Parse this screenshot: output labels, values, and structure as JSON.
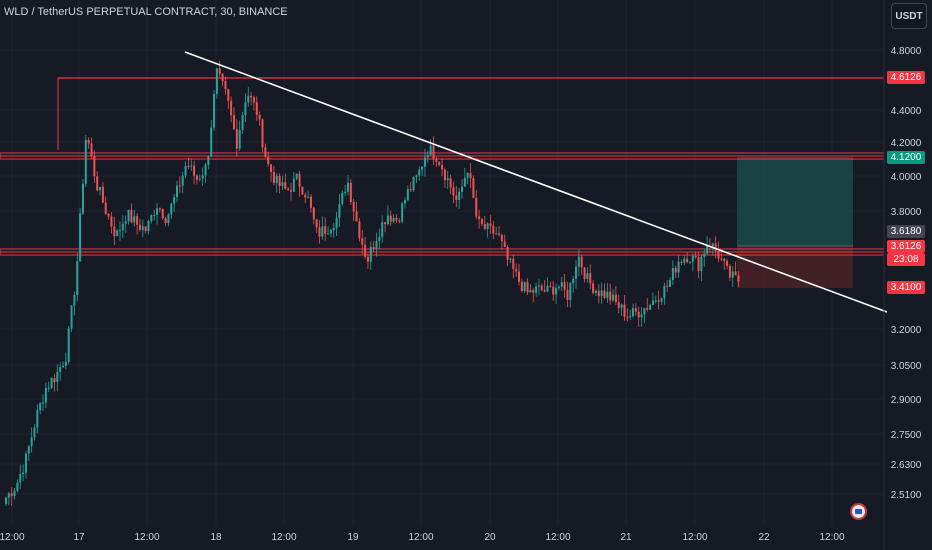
{
  "header": {
    "symbol_title": "WLD / TetherUS PERPETUAL CONTRACT, 30, BINANCE",
    "currency_button": "USDT"
  },
  "colors": {
    "background": "#161a25",
    "grid": "#1f2330",
    "candle_up": "#26a69a",
    "candle_down": "#ef5350",
    "level_line": "#f23645",
    "trendline": "#ffffff",
    "target_zone": "#1a4a4a",
    "stop_zone": "#4a2327",
    "tag_red": "#f23645",
    "tag_teal": "#089981",
    "tag_gray": "#434651"
  },
  "price_axis": {
    "labels": [
      "4.8000",
      "4.4000",
      "4.2000",
      "4.0000",
      "3.8000",
      "3.2000",
      "3.0500",
      "2.9000",
      "2.7500",
      "2.6300",
      "2.5100"
    ],
    "tags": {
      "resistance_top": "4.6126",
      "target": "4.1200",
      "current": "3.6180",
      "support": "3.6126",
      "countdown": "23:08",
      "stop": "3.4100"
    }
  },
  "time_axis": {
    "labels": [
      "12:00",
      "17",
      "12:00",
      "18",
      "12:00",
      "19",
      "12:00",
      "20",
      "12:00",
      "21",
      "12:00",
      "22",
      "12:00"
    ]
  },
  "chart_data": {
    "type": "candlestick",
    "symbol": "WLD/USDT",
    "interval": "30",
    "exchange": "BINANCE",
    "y_range": [
      2.45,
      4.85
    ],
    "x_start": "16 12:00",
    "x_end": "22 12:00",
    "horizontal_levels": [
      4.6126,
      4.12,
      3.6126
    ],
    "trendline": {
      "from": [
        "17 12:00 (approx.)",
        4.78
      ],
      "to": [
        "22 12:00+ (approx.)",
        3.3
      ]
    },
    "position": {
      "entry": 3.618,
      "target": 4.12,
      "stop": 3.41
    },
    "last_price": 3.618,
    "close_path_approx": [
      2.56,
      2.62,
      2.75,
      2.95,
      3.1,
      3.16,
      3.26,
      3.65,
      4.35,
      4.1,
      3.96,
      3.84,
      3.95,
      3.9,
      3.87,
      4.0,
      3.93,
      4.05,
      4.2,
      4.12,
      4.18,
      4.64,
      4.52,
      4.3,
      4.55,
      4.45,
      4.2,
      4.1,
      4.06,
      4.12,
      4.04,
      3.85,
      3.88,
      3.93,
      4.12,
      3.9,
      3.72,
      3.85,
      3.95,
      3.92,
      4.05,
      4.13,
      4.27,
      4.23,
      4.12,
      4.0,
      4.18,
      3.9,
      3.87,
      3.85,
      3.72,
      3.63,
      3.56,
      3.58,
      3.57,
      3.6,
      3.55,
      3.75,
      3.62,
      3.57,
      3.55,
      3.5,
      3.45,
      3.47,
      3.5,
      3.55,
      3.6,
      3.72,
      3.75,
      3.7,
      3.82,
      3.75,
      3.65,
      3.618
    ]
  }
}
